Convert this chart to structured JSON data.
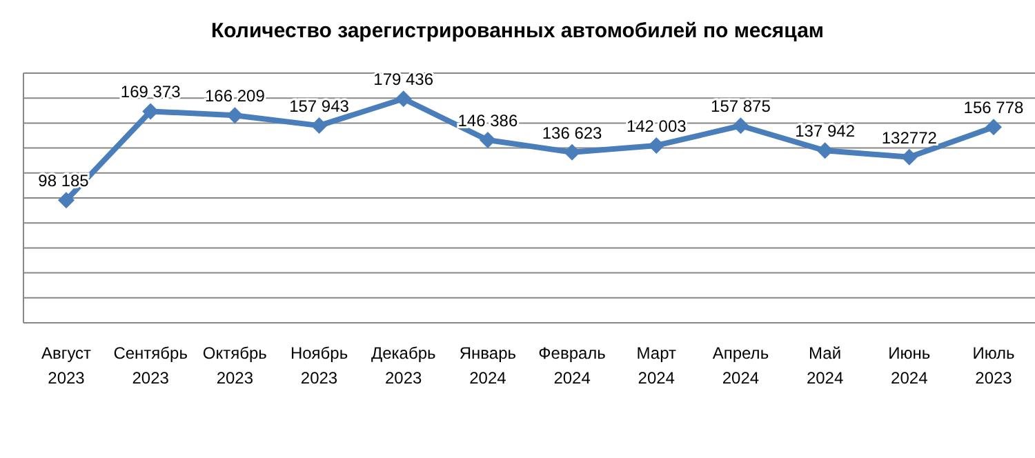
{
  "chart_data": {
    "type": "line",
    "title": "Количество зарегистрированных автомобилей по месяцам",
    "categories": [
      "Август\n2023",
      "Сентябрь\n2023",
      "Октябрь\n2023",
      "Ноябрь\n2023",
      "Декабрь\n2023",
      "Январь\n2024",
      "Февраль\n2024",
      "Март\n2024",
      "Апрель\n2024",
      "Май\n2024",
      "Июнь\n2024",
      "Июль\n2023"
    ],
    "series": [
      {
        "color": "#4a7ebb",
        "values": [
          98185,
          169373,
          166209,
          157943,
          179436,
          146386,
          136623,
          142003,
          157875,
          137942,
          132772,
          156778
        ],
        "value_labels": [
          "98 185",
          "169 373",
          "166 209",
          "157 943",
          "179 436",
          "146 386",
          "136 623",
          "142 003",
          "157 875",
          "137 942",
          "132772",
          "156 778"
        ]
      }
    ],
    "ylim": [
      0,
      200000
    ],
    "yticks": [
      {
        "value": 0,
        "label": null
      },
      {
        "value": 20000,
        "label": null
      },
      {
        "value": 40000,
        "label": null
      },
      {
        "value": 60000,
        "label": null
      },
      {
        "value": 80000,
        "label": null
      },
      {
        "value": 100000,
        "label": null
      },
      {
        "value": 120000,
        "label": null
      },
      {
        "value": 140000,
        "label": null
      },
      {
        "value": 160000,
        "label": null
      },
      {
        "value": 180000,
        "label": null
      },
      {
        "value": 200000,
        "label": null
      }
    ],
    "tick_labels": "x",
    "grid": "y",
    "marker": "diamond",
    "line_style": "solid"
  }
}
